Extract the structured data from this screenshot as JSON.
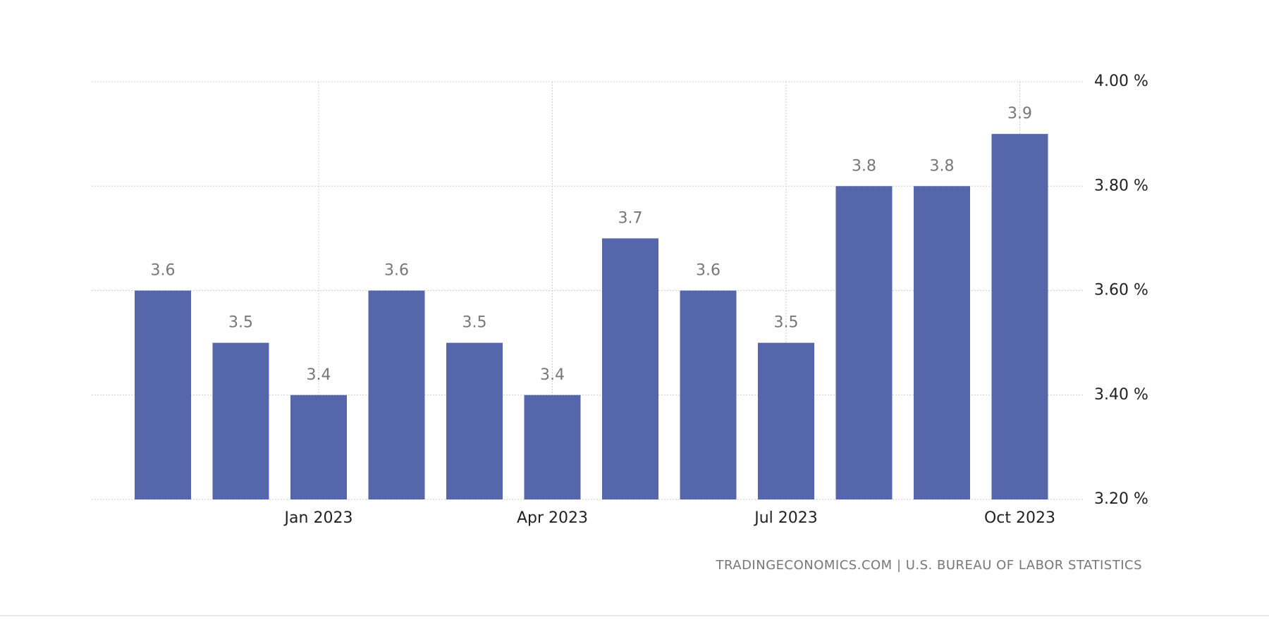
{
  "chart_data": {
    "type": "bar",
    "categories": [
      null,
      null,
      "Jan 2023",
      null,
      null,
      "Apr 2023",
      null,
      null,
      "Jul 2023",
      null,
      null,
      "Oct 2023"
    ],
    "values": [
      3.6,
      3.5,
      3.4,
      3.6,
      3.5,
      3.4,
      3.7,
      3.6,
      3.5,
      3.8,
      3.8,
      3.9
    ],
    "color": "#5566ab",
    "ylim": [
      3.2,
      4.0
    ],
    "yticks": [
      {
        "value": 3.2,
        "label": "3.20 %"
      },
      {
        "value": 3.4,
        "label": "3.40 %"
      },
      {
        "value": 3.6,
        "label": "3.60 %"
      },
      {
        "value": 3.8,
        "label": "3.80 %"
      },
      {
        "value": 4.0,
        "label": "4.00 %"
      }
    ],
    "grid": true,
    "source": "TRADINGECONOMICS.COM | U.S. BUREAU OF LABOR STATISTICS"
  }
}
